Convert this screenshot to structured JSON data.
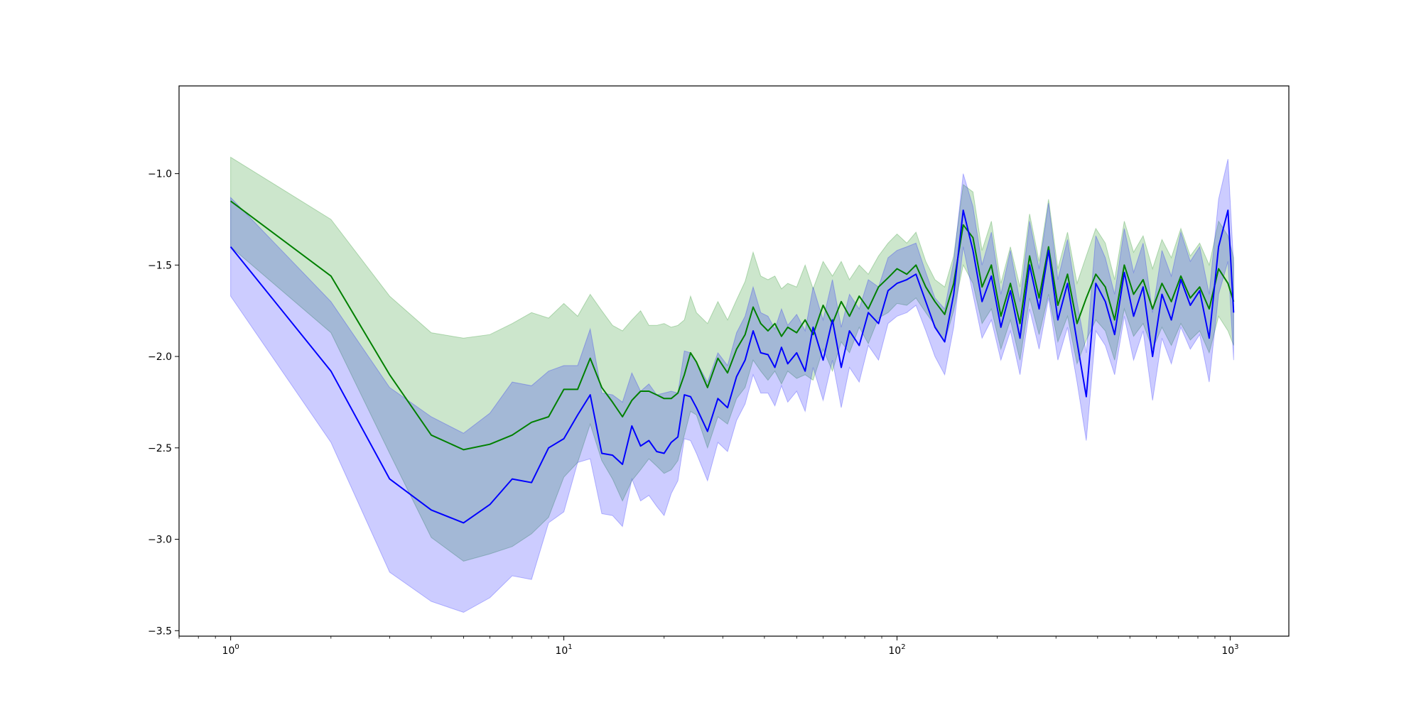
{
  "chart_data": {
    "type": "line",
    "title": "",
    "xlabel": "",
    "ylabel": "",
    "xscale": "log",
    "xlim": [
      0.7,
      1500
    ],
    "ylim": [
      -3.53,
      -0.52
    ],
    "grid": false,
    "legend": "none",
    "x_ticks": [
      {
        "value": 1,
        "base": "10",
        "exp": "0"
      },
      {
        "value": 10,
        "base": "10",
        "exp": "1"
      },
      {
        "value": 100,
        "base": "10",
        "exp": "2"
      },
      {
        "value": 1000,
        "base": "10",
        "exp": "3"
      }
    ],
    "y_ticks": [
      {
        "value": -1.0,
        "label": "−1.0"
      },
      {
        "value": -1.5,
        "label": "−1.5"
      },
      {
        "value": -2.0,
        "label": "−2.0"
      },
      {
        "value": -2.5,
        "label": "−2.5"
      },
      {
        "value": -3.0,
        "label": "−3.0"
      },
      {
        "value": -3.5,
        "label": "−3.5"
      }
    ],
    "series": [
      {
        "color": "#008000",
        "band_color": "#008000",
        "band_opacity": 0.2,
        "points": [
          [
            1,
            -1.15,
            -0.91,
            -1.4
          ],
          [
            2,
            -1.56,
            -1.25,
            -1.87
          ],
          [
            3,
            -2.1,
            -1.67,
            -2.53
          ],
          [
            4,
            -2.43,
            -1.87,
            -2.99
          ],
          [
            5,
            -2.51,
            -1.9,
            -3.12
          ],
          [
            6,
            -2.48,
            -1.88,
            -3.08
          ],
          [
            7,
            -2.43,
            -1.82,
            -3.04
          ],
          [
            8,
            -2.36,
            -1.76,
            -2.97
          ],
          [
            9,
            -2.33,
            -1.79,
            -2.88
          ],
          [
            10,
            -2.18,
            -1.71,
            -2.66
          ],
          [
            11,
            -2.18,
            -1.78,
            -2.58
          ],
          [
            12,
            -2.01,
            -1.66,
            -2.37
          ],
          [
            13,
            -2.17,
            -1.75,
            -2.57
          ],
          [
            14,
            -2.25,
            -1.83,
            -2.67
          ],
          [
            15,
            -2.33,
            -1.86,
            -2.79
          ],
          [
            16,
            -2.24,
            -1.8,
            -2.68
          ],
          [
            17,
            -2.19,
            -1.75,
            -2.62
          ],
          [
            18,
            -2.19,
            -1.83,
            -2.56
          ],
          [
            19,
            -2.21,
            -1.83,
            -2.6
          ],
          [
            20,
            -2.23,
            -1.82,
            -2.64
          ],
          [
            21,
            -2.23,
            -1.84,
            -2.62
          ],
          [
            22,
            -2.2,
            -1.83,
            -2.57
          ],
          [
            23,
            -2.1,
            -1.8,
            -2.43
          ],
          [
            24,
            -1.98,
            -1.67,
            -2.3
          ],
          [
            25,
            -2.03,
            -1.76,
            -2.32
          ],
          [
            27,
            -2.17,
            -1.82,
            -2.5
          ],
          [
            29,
            -2.01,
            -1.7,
            -2.33
          ],
          [
            31,
            -2.09,
            -1.8,
            -2.37
          ],
          [
            33,
            -1.96,
            -1.69,
            -2.23
          ],
          [
            35,
            -1.88,
            -1.59,
            -2.17
          ],
          [
            37,
            -1.73,
            -1.43,
            -2.02
          ],
          [
            39,
            -1.82,
            -1.56,
            -2.08
          ],
          [
            41,
            -1.86,
            -1.58,
            -2.13
          ],
          [
            43,
            -1.82,
            -1.56,
            -2.08
          ],
          [
            45,
            -1.89,
            -1.63,
            -2.15
          ],
          [
            47,
            -1.84,
            -1.6,
            -2.08
          ],
          [
            50,
            -1.87,
            -1.62,
            -2.12
          ],
          [
            53,
            -1.8,
            -1.5,
            -2.1
          ],
          [
            56,
            -1.88,
            -1.63,
            -2.13
          ],
          [
            60,
            -1.72,
            -1.48,
            -1.96
          ],
          [
            64,
            -1.82,
            -1.56,
            -2.08
          ],
          [
            68,
            -1.7,
            -1.48,
            -1.92
          ],
          [
            72,
            -1.78,
            -1.58,
            -1.98
          ],
          [
            77,
            -1.67,
            -1.5,
            -1.84
          ],
          [
            82,
            -1.74,
            -1.55,
            -1.93
          ],
          [
            88,
            -1.62,
            -1.45,
            -1.79
          ],
          [
            94,
            -1.57,
            -1.38,
            -1.76
          ],
          [
            100,
            -1.52,
            -1.33,
            -1.71
          ],
          [
            107,
            -1.55,
            -1.38,
            -1.72
          ],
          [
            114,
            -1.5,
            -1.32,
            -1.68
          ],
          [
            122,
            -1.62,
            -1.48,
            -1.76
          ],
          [
            130,
            -1.7,
            -1.58,
            -1.83
          ],
          [
            139,
            -1.77,
            -1.62,
            -1.92
          ],
          [
            148,
            -1.6,
            -1.45,
            -1.75
          ],
          [
            158,
            -1.28,
            -1.06,
            -1.5
          ],
          [
            169,
            -1.35,
            -1.1,
            -1.6
          ],
          [
            180,
            -1.62,
            -1.42,
            -1.82
          ],
          [
            192,
            -1.5,
            -1.26,
            -1.74
          ],
          [
            205,
            -1.78,
            -1.6,
            -1.96
          ],
          [
            219,
            -1.6,
            -1.4,
            -1.8
          ],
          [
            234,
            -1.82,
            -1.62,
            -2.02
          ],
          [
            250,
            -1.45,
            -1.22,
            -1.68
          ],
          [
            267,
            -1.68,
            -1.48,
            -1.88
          ],
          [
            285,
            -1.4,
            -1.14,
            -1.66
          ],
          [
            304,
            -1.72,
            -1.52,
            -1.92
          ],
          [
            325,
            -1.55,
            -1.32,
            -1.78
          ],
          [
            347,
            -1.82,
            -1.6,
            -2.04
          ],
          [
            370,
            -1.68,
            -1.45,
            -1.91
          ],
          [
            395,
            -1.55,
            -1.3,
            -1.8
          ],
          [
            422,
            -1.62,
            -1.38,
            -1.86
          ],
          [
            450,
            -1.8,
            -1.58,
            -2.02
          ],
          [
            481,
            -1.5,
            -1.26,
            -1.74
          ],
          [
            513,
            -1.66,
            -1.43,
            -1.89
          ],
          [
            548,
            -1.58,
            -1.34,
            -1.82
          ],
          [
            585,
            -1.74,
            -1.52,
            -1.96
          ],
          [
            624,
            -1.6,
            -1.36,
            -1.84
          ],
          [
            666,
            -1.7,
            -1.46,
            -1.94
          ],
          [
            711,
            -1.56,
            -1.3,
            -1.82
          ],
          [
            759,
            -1.68,
            -1.45,
            -1.91
          ],
          [
            810,
            -1.62,
            -1.38,
            -1.86
          ],
          [
            865,
            -1.74,
            -1.5,
            -1.98
          ],
          [
            923,
            -1.52,
            -1.26,
            -1.78
          ],
          [
            985,
            -1.6,
            -1.34,
            -1.86
          ],
          [
            1024,
            -1.7,
            -1.46,
            -1.94
          ]
        ]
      },
      {
        "color": "#0000ff",
        "band_color": "#0000ff",
        "band_opacity": 0.2,
        "points": [
          [
            1,
            -1.4,
            -1.13,
            -1.67
          ],
          [
            2,
            -2.08,
            -1.7,
            -2.47
          ],
          [
            3,
            -2.67,
            -2.17,
            -3.18
          ],
          [
            4,
            -2.84,
            -2.33,
            -3.34
          ],
          [
            5,
            -2.91,
            -2.42,
            -3.4
          ],
          [
            6,
            -2.81,
            -2.31,
            -3.32
          ],
          [
            7,
            -2.67,
            -2.14,
            -3.2
          ],
          [
            8,
            -2.69,
            -2.16,
            -3.22
          ],
          [
            9,
            -2.5,
            -2.08,
            -2.91
          ],
          [
            10,
            -2.45,
            -2.05,
            -2.85
          ],
          [
            11,
            -2.32,
            -2.05,
            -2.58
          ],
          [
            12,
            -2.21,
            -1.85,
            -2.56
          ],
          [
            13,
            -2.53,
            -2.2,
            -2.86
          ],
          [
            14,
            -2.54,
            -2.21,
            -2.87
          ],
          [
            15,
            -2.59,
            -2.25,
            -2.93
          ],
          [
            16,
            -2.38,
            -2.09,
            -2.67
          ],
          [
            17,
            -2.49,
            -2.19,
            -2.79
          ],
          [
            18,
            -2.46,
            -2.15,
            -2.76
          ],
          [
            19,
            -2.52,
            -2.21,
            -2.82
          ],
          [
            20,
            -2.53,
            -2.2,
            -2.87
          ],
          [
            21,
            -2.47,
            -2.19,
            -2.75
          ],
          [
            22,
            -2.44,
            -2.2,
            -2.68
          ],
          [
            23,
            -2.21,
            -1.97,
            -2.45
          ],
          [
            24,
            -2.22,
            -1.98,
            -2.46
          ],
          [
            25,
            -2.28,
            -2.03,
            -2.53
          ],
          [
            27,
            -2.41,
            -2.14,
            -2.68
          ],
          [
            29,
            -2.23,
            -1.98,
            -2.47
          ],
          [
            31,
            -2.28,
            -2.05,
            -2.52
          ],
          [
            33,
            -2.11,
            -1.87,
            -2.35
          ],
          [
            35,
            -2.02,
            -1.78,
            -2.26
          ],
          [
            37,
            -1.86,
            -1.62,
            -2.1
          ],
          [
            39,
            -1.98,
            -1.76,
            -2.2
          ],
          [
            41,
            -1.99,
            -1.78,
            -2.2
          ],
          [
            43,
            -2.06,
            -1.85,
            -2.27
          ],
          [
            45,
            -1.95,
            -1.74,
            -2.16
          ],
          [
            47,
            -2.04,
            -1.83,
            -2.25
          ],
          [
            50,
            -1.98,
            -1.77,
            -2.19
          ],
          [
            53,
            -2.08,
            -1.86,
            -2.3
          ],
          [
            56,
            -1.84,
            -1.62,
            -2.06
          ],
          [
            60,
            -2.02,
            -1.8,
            -2.24
          ],
          [
            64,
            -1.8,
            -1.58,
            -2.02
          ],
          [
            68,
            -2.06,
            -1.84,
            -2.28
          ],
          [
            72,
            -1.86,
            -1.66,
            -2.06
          ],
          [
            77,
            -1.94,
            -1.74,
            -2.14
          ],
          [
            82,
            -1.76,
            -1.58,
            -1.94
          ],
          [
            88,
            -1.82,
            -1.62,
            -2.02
          ],
          [
            94,
            -1.64,
            -1.46,
            -1.82
          ],
          [
            100,
            -1.6,
            -1.42,
            -1.78
          ],
          [
            107,
            -1.58,
            -1.4,
            -1.76
          ],
          [
            114,
            -1.55,
            -1.38,
            -1.72
          ],
          [
            122,
            -1.7,
            -1.54,
            -1.86
          ],
          [
            130,
            -1.84,
            -1.68,
            -2.0
          ],
          [
            139,
            -1.92,
            -1.74,
            -2.1
          ],
          [
            148,
            -1.66,
            -1.48,
            -1.84
          ],
          [
            158,
            -1.2,
            -1.0,
            -1.4
          ],
          [
            169,
            -1.42,
            -1.18,
            -1.66
          ],
          [
            180,
            -1.7,
            -1.5,
            -1.9
          ],
          [
            192,
            -1.56,
            -1.32,
            -1.8
          ],
          [
            205,
            -1.84,
            -1.66,
            -2.02
          ],
          [
            219,
            -1.64,
            -1.42,
            -1.86
          ],
          [
            234,
            -1.9,
            -1.7,
            -2.1
          ],
          [
            250,
            -1.5,
            -1.26,
            -1.74
          ],
          [
            267,
            -1.74,
            -1.52,
            -1.96
          ],
          [
            285,
            -1.42,
            -1.16,
            -1.68
          ],
          [
            304,
            -1.8,
            -1.58,
            -2.02
          ],
          [
            325,
            -1.6,
            -1.36,
            -1.84
          ],
          [
            347,
            -1.92,
            -1.7,
            -2.14
          ],
          [
            370,
            -2.22,
            -1.98,
            -2.46
          ],
          [
            395,
            -1.6,
            -1.34,
            -1.86
          ],
          [
            422,
            -1.7,
            -1.46,
            -1.94
          ],
          [
            450,
            -1.88,
            -1.66,
            -2.1
          ],
          [
            481,
            -1.54,
            -1.3,
            -1.78
          ],
          [
            513,
            -1.78,
            -1.54,
            -2.02
          ],
          [
            548,
            -1.62,
            -1.38,
            -1.86
          ],
          [
            585,
            -2.0,
            -1.76,
            -2.24
          ],
          [
            624,
            -1.66,
            -1.42,
            -1.9
          ],
          [
            666,
            -1.8,
            -1.56,
            -2.04
          ],
          [
            711,
            -1.58,
            -1.32,
            -1.84
          ],
          [
            759,
            -1.72,
            -1.48,
            -1.96
          ],
          [
            810,
            -1.64,
            -1.4,
            -1.88
          ],
          [
            865,
            -1.9,
            -1.66,
            -2.14
          ],
          [
            923,
            -1.4,
            -1.14,
            -1.66
          ],
          [
            985,
            -1.2,
            -0.92,
            -1.48
          ],
          [
            1024,
            -1.76,
            -1.5,
            -2.02
          ]
        ]
      }
    ]
  }
}
